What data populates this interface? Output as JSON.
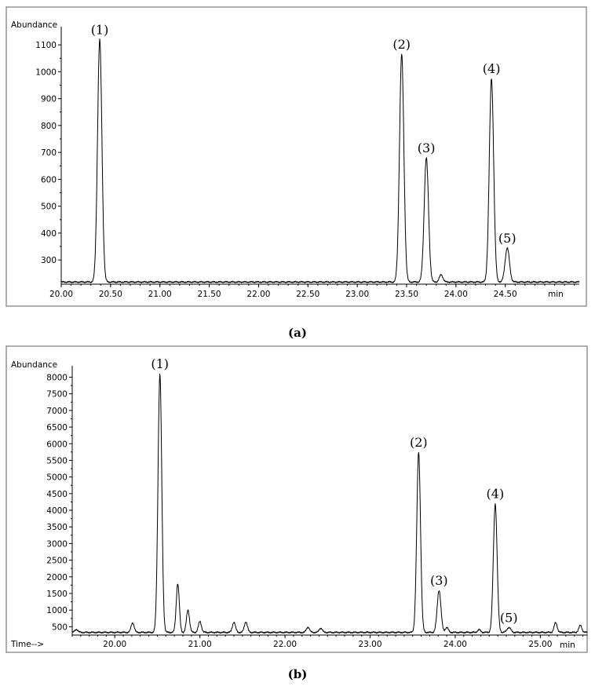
{
  "chart_data": [
    {
      "type": "line",
      "panel_label": "(a)",
      "ylabel": "Abundance",
      "xlabel": "",
      "x_unit": "min",
      "xlim": [
        20.0,
        25.25
      ],
      "ylim": [
        210,
        1150
      ],
      "xticks": [
        "20.00",
        "20.50",
        "21.00",
        "21.50",
        "22.00",
        "22.50",
        "23.00",
        "23.50",
        "24.00",
        "24.50"
      ],
      "yticks": [
        "300",
        "400",
        "500",
        "600",
        "700",
        "800",
        "900",
        "1000",
        "1100"
      ],
      "grid": false,
      "baseline": 218,
      "peaks": [
        {
          "label": "(1)",
          "x": 20.39,
          "y": 1120
        },
        {
          "label": "(2)",
          "x": 23.45,
          "y": 1065
        },
        {
          "label": "(3)",
          "x": 23.7,
          "y": 680
        },
        {
          "label": "(4)",
          "x": 24.36,
          "y": 975
        },
        {
          "label": "(5)",
          "x": 24.52,
          "y": 345
        }
      ],
      "minor_peaks": [
        {
          "x": 23.85,
          "y": 245
        }
      ]
    },
    {
      "type": "line",
      "panel_label": "(b)",
      "ylabel": "Abundance",
      "xlabel": "Time-->",
      "x_unit": "min",
      "xlim": [
        19.5,
        25.55
      ],
      "ylim": [
        250,
        8200
      ],
      "xticks": [
        "20.00",
        "21.00",
        "22.00",
        "23.00",
        "24.00",
        "25.00"
      ],
      "yticks": [
        "500",
        "1000",
        "1500",
        "2000",
        "2500",
        "3000",
        "3500",
        "4000",
        "4500",
        "5000",
        "5500",
        "6000",
        "6500",
        "7000",
        "7500",
        "8000"
      ],
      "grid": false,
      "baseline": 330,
      "peaks": [
        {
          "label": "(1)",
          "x": 20.53,
          "y": 8100
        },
        {
          "label": "(2)",
          "x": 23.57,
          "y": 5750
        },
        {
          "label": "(3)",
          "x": 23.81,
          "y": 1600
        },
        {
          "label": "(4)",
          "x": 24.47,
          "y": 4200
        },
        {
          "label": "(5)",
          "x": 24.63,
          "y": 480
        }
      ],
      "minor_peaks": [
        {
          "x": 19.55,
          "y": 420
        },
        {
          "x": 20.21,
          "y": 620
        },
        {
          "x": 20.74,
          "y": 1800
        },
        {
          "x": 20.86,
          "y": 1000
        },
        {
          "x": 21.0,
          "y": 660
        },
        {
          "x": 21.4,
          "y": 640
        },
        {
          "x": 21.54,
          "y": 650
        },
        {
          "x": 22.27,
          "y": 490
        },
        {
          "x": 22.42,
          "y": 460
        },
        {
          "x": 23.9,
          "y": 480
        },
        {
          "x": 24.28,
          "y": 410
        },
        {
          "x": 25.18,
          "y": 620
        },
        {
          "x": 25.47,
          "y": 540
        }
      ]
    }
  ]
}
